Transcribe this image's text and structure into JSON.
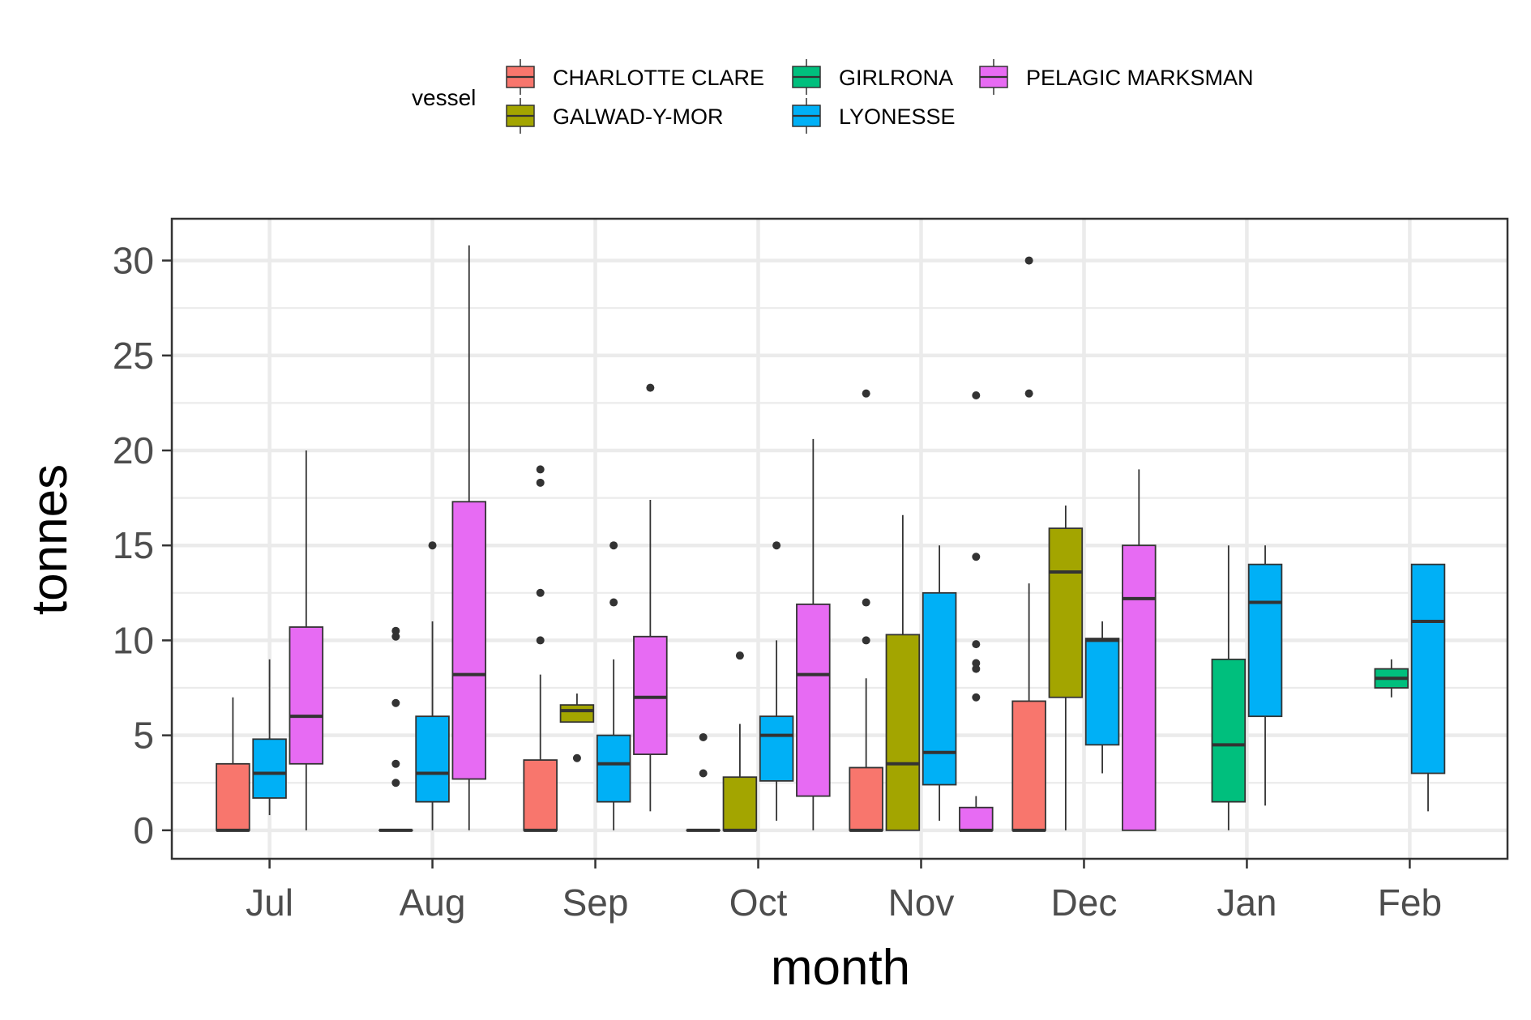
{
  "chart_data": {
    "type": "boxplot",
    "xlabel": "month",
    "ylabel": "tonnes",
    "ylim": [
      -1.5,
      32.2
    ],
    "yticks": [
      0,
      5,
      10,
      15,
      20,
      25,
      30
    ],
    "grid": true,
    "legend": {
      "title": "vessel",
      "position": "top"
    },
    "categories": [
      "Jul",
      "Aug",
      "Sep",
      "Oct",
      "Nov",
      "Dec",
      "Jan",
      "Feb"
    ],
    "series": [
      {
        "name": "CHARLOTTE CLARE",
        "color": "#F8766D"
      },
      {
        "name": "GALWAD-Y-MOR",
        "color": "#A3A500"
      },
      {
        "name": "GIRLRONA",
        "color": "#00BF7D"
      },
      {
        "name": "LYONESSE",
        "color": "#00B0F6"
      },
      {
        "name": "PELAGIC MARKSMAN",
        "color": "#E76BF3"
      }
    ],
    "boxes": [
      {
        "month": "Jul",
        "vessel": "CHARLOTTE CLARE",
        "min": 0,
        "q1": 0,
        "median": 0,
        "q3": 3.5,
        "max": 7,
        "outliers": []
      },
      {
        "month": "Jul",
        "vessel": "LYONESSE",
        "min": 0.8,
        "q1": 1.7,
        "median": 3,
        "q3": 4.8,
        "max": 9,
        "outliers": []
      },
      {
        "month": "Jul",
        "vessel": "PELAGIC MARKSMAN",
        "min": 0,
        "q1": 3.5,
        "median": 6,
        "q3": 10.7,
        "max": 20,
        "outliers": []
      },
      {
        "month": "Aug",
        "vessel": "CHARLOTTE CLARE",
        "min": 0,
        "q1": 0,
        "median": 0,
        "q3": 0,
        "max": 0,
        "outliers": [
          2.5,
          3.5,
          6.7,
          10.2,
          10.5
        ]
      },
      {
        "month": "Aug",
        "vessel": "LYONESSE",
        "min": 0,
        "q1": 1.5,
        "median": 3,
        "q3": 6,
        "max": 11,
        "outliers": [
          15
        ]
      },
      {
        "month": "Aug",
        "vessel": "PELAGIC MARKSMAN",
        "min": 0,
        "q1": 2.7,
        "median": 8.2,
        "q3": 17.3,
        "max": 30.8,
        "outliers": []
      },
      {
        "month": "Sep",
        "vessel": "CHARLOTTE CLARE",
        "min": 0,
        "q1": 0,
        "median": 0,
        "q3": 3.7,
        "max": 8.2,
        "outliers": [
          10,
          12.5,
          18.3,
          19
        ]
      },
      {
        "month": "Sep",
        "vessel": "GALWAD-Y-MOR",
        "min": 5.7,
        "q1": 5.7,
        "median": 6.3,
        "q3": 6.6,
        "max": 7.2,
        "outliers": [
          3.8
        ]
      },
      {
        "month": "Sep",
        "vessel": "LYONESSE",
        "min": 0,
        "q1": 1.5,
        "median": 3.5,
        "q3": 5,
        "max": 9,
        "outliers": [
          12,
          15
        ]
      },
      {
        "month": "Sep",
        "vessel": "PELAGIC MARKSMAN",
        "min": 1,
        "q1": 4,
        "median": 7,
        "q3": 10.2,
        "max": 17.4,
        "outliers": [
          23.3
        ]
      },
      {
        "month": "Oct",
        "vessel": "CHARLOTTE CLARE",
        "min": 0,
        "q1": 0,
        "median": 0,
        "q3": 0,
        "max": 0,
        "outliers": [
          3,
          4.9
        ]
      },
      {
        "month": "Oct",
        "vessel": "GALWAD-Y-MOR",
        "min": 0,
        "q1": 0,
        "median": 0,
        "q3": 2.8,
        "max": 5.6,
        "outliers": [
          9.2
        ]
      },
      {
        "month": "Oct",
        "vessel": "LYONESSE",
        "min": 0.5,
        "q1": 2.6,
        "median": 5,
        "q3": 6,
        "max": 10,
        "outliers": [
          15
        ]
      },
      {
        "month": "Oct",
        "vessel": "PELAGIC MARKSMAN",
        "min": 0,
        "q1": 1.8,
        "median": 8.2,
        "q3": 11.9,
        "max": 20.6,
        "outliers": []
      },
      {
        "month": "Nov",
        "vessel": "CHARLOTTE CLARE",
        "min": 0,
        "q1": 0,
        "median": 0,
        "q3": 3.3,
        "max": 8,
        "outliers": [
          10,
          12,
          23
        ]
      },
      {
        "month": "Nov",
        "vessel": "GALWAD-Y-MOR",
        "min": 0,
        "q1": 0,
        "median": 3.5,
        "q3": 10.3,
        "max": 16.6,
        "outliers": []
      },
      {
        "month": "Nov",
        "vessel": "LYONESSE",
        "min": 0.5,
        "q1": 2.4,
        "median": 4.1,
        "q3": 12.5,
        "max": 15,
        "outliers": []
      },
      {
        "month": "Nov",
        "vessel": "PELAGIC MARKSMAN",
        "min": 0,
        "q1": 0,
        "median": 0,
        "q3": 1.2,
        "max": 1.8,
        "outliers": [
          7,
          8.5,
          8.8,
          9.8,
          14.4,
          22.9
        ]
      },
      {
        "month": "Dec",
        "vessel": "CHARLOTTE CLARE",
        "min": 0,
        "q1": 0,
        "median": 0,
        "q3": 6.8,
        "max": 13,
        "outliers": [
          23,
          30
        ]
      },
      {
        "month": "Dec",
        "vessel": "GALWAD-Y-MOR",
        "min": 0,
        "q1": 7,
        "median": 13.6,
        "q3": 15.9,
        "max": 17.1,
        "outliers": []
      },
      {
        "month": "Dec",
        "vessel": "LYONESSE",
        "min": 3,
        "q1": 4.5,
        "median": 10,
        "q3": 10.1,
        "max": 11,
        "outliers": []
      },
      {
        "month": "Dec",
        "vessel": "PELAGIC MARKSMAN",
        "min": 0,
        "q1": 0,
        "median": 12.2,
        "q3": 15,
        "max": 19,
        "outliers": []
      },
      {
        "month": "Jan",
        "vessel": "GIRLRONA",
        "min": 0,
        "q1": 1.5,
        "median": 4.5,
        "q3": 9,
        "max": 15,
        "outliers": []
      },
      {
        "month": "Jan",
        "vessel": "LYONESSE",
        "min": 1.3,
        "q1": 6,
        "median": 12,
        "q3": 14,
        "max": 15,
        "outliers": []
      },
      {
        "month": "Feb",
        "vessel": "GIRLRONA",
        "min": 7,
        "q1": 7.5,
        "median": 8,
        "q3": 8.5,
        "max": 9,
        "outliers": []
      },
      {
        "month": "Feb",
        "vessel": "LYONESSE",
        "min": 1,
        "q1": 3,
        "median": 11,
        "q3": 14,
        "max": 14,
        "outliers": []
      }
    ]
  }
}
